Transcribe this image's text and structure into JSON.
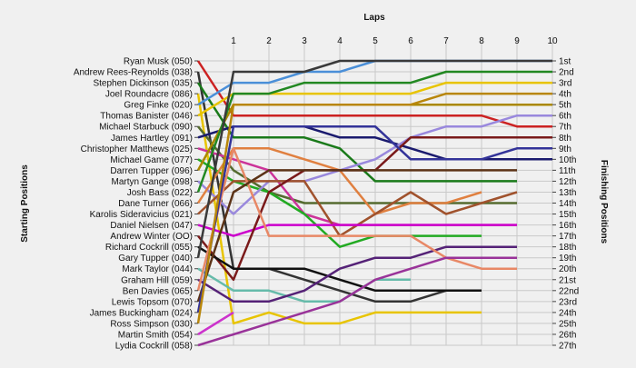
{
  "chart_data": {
    "type": "line",
    "title": "Laps",
    "ylabel_left": "Starting Positions",
    "ylabel_right": "Finishing Positions",
    "x": [
      0,
      1,
      2,
      3,
      4,
      5,
      6,
      7,
      8,
      9,
      10
    ],
    "x_tick_labels": [
      "1",
      "2",
      "3",
      "4",
      "5",
      "6",
      "7",
      "8",
      "9",
      "10"
    ],
    "xlim": [
      0,
      10
    ],
    "ylim": [
      1,
      27
    ],
    "y_inverted": true,
    "grid": true,
    "finish_labels": [
      "1st",
      "2nd",
      "3rd",
      "4th",
      "5th",
      "6th",
      "7th",
      "8th",
      "9th",
      "10th",
      "11th",
      "12th",
      "13th",
      "14th",
      "15th",
      "16th",
      "17th",
      "18th",
      "19th",
      "20th",
      "21st",
      "22nd",
      "23rd",
      "24th",
      "25th",
      "26th",
      "27th"
    ],
    "series": [
      {
        "name": "Ryan Musk (050)",
        "color": "#cc2222",
        "values": [
          1,
          6,
          6,
          6,
          6,
          6,
          6,
          6,
          6,
          7,
          7
        ]
      },
      {
        "name": "Andrew Rees-Reynolds (038)",
        "color": "#333333",
        "values": [
          2,
          20,
          20,
          21,
          22,
          23,
          23,
          22,
          22,
          null,
          null
        ]
      },
      {
        "name": "Stephen Dickinson (035)",
        "color": "#1a7a1a",
        "values": [
          3,
          8,
          8,
          8,
          9,
          12,
          12,
          12,
          12,
          12,
          null
        ]
      },
      {
        "name": "Joel Roundacre (086)",
        "color": "#e8c400",
        "values": [
          4,
          25,
          24,
          25,
          25,
          24,
          24,
          24,
          24,
          null,
          null
        ]
      },
      {
        "name": "Greg Finke (020)",
        "color": "#4a8fd8",
        "values": [
          5,
          3,
          3,
          2,
          2,
          1,
          1,
          1,
          1,
          1,
          1
        ]
      },
      {
        "name": "Thomas Banister (046)",
        "color": "#e8c400",
        "values": [
          6,
          4,
          4,
          4,
          4,
          4,
          4,
          3,
          3,
          3,
          3
        ]
      },
      {
        "name": "Michael Starbuck (090)",
        "color": "#556b2f",
        "values": [
          7,
          11,
          13,
          14,
          14,
          14,
          14,
          14,
          14,
          14,
          null
        ]
      },
      {
        "name": "James Hartley (091)",
        "color": "#1a1a6e",
        "values": [
          8,
          7,
          7,
          7,
          8,
          8,
          9,
          10,
          10,
          10,
          10
        ]
      },
      {
        "name": "Christopher Matthews (025)",
        "color": "#cc3399",
        "values": [
          9,
          10,
          11,
          15,
          16,
          16,
          16,
          16,
          16,
          16,
          null
        ]
      },
      {
        "name": "Michael Game (077)",
        "color": "#22aa22",
        "values": [
          10,
          12,
          13,
          15,
          18,
          17,
          17,
          17,
          17,
          null,
          null
        ]
      },
      {
        "name": "Darren Tupper (096)",
        "color": "#aa8800",
        "values": [
          11,
          5,
          5,
          5,
          5,
          5,
          5,
          5,
          5,
          5,
          5
        ]
      },
      {
        "name": "Martyn Gange (098)",
        "color": "#9988dd",
        "values": [
          12,
          15,
          12,
          12,
          11,
          10,
          8,
          7,
          7,
          6,
          6
        ]
      },
      {
        "name": "Josh Bass (022)",
        "color": "#228822",
        "values": [
          13,
          4,
          4,
          3,
          3,
          3,
          3,
          2,
          2,
          2,
          2
        ]
      },
      {
        "name": "Dane Turner (066)",
        "color": "#e08040",
        "values": [
          14,
          9,
          9,
          10,
          11,
          15,
          14,
          14,
          13,
          null,
          null
        ]
      },
      {
        "name": "Karolis Sideravicius (021)",
        "color": "#a0522d",
        "values": [
          15,
          12,
          12,
          12,
          17,
          15,
          13,
          15,
          14,
          13,
          null
        ]
      },
      {
        "name": "Daniel Nielsen (047)",
        "color": "#cc00cc",
        "values": [
          16,
          17,
          16,
          16,
          16,
          16,
          16,
          16,
          16,
          16,
          null
        ]
      },
      {
        "name": "Andrew Winter (OO)",
        "color": "#7a1a1a",
        "values": [
          17,
          21,
          13,
          11,
          11,
          11,
          8,
          8,
          8,
          8,
          8
        ]
      },
      {
        "name": "Richard Cockrill (055)",
        "color": "#111111",
        "values": [
          18,
          20,
          20,
          20,
          21,
          22,
          22,
          22,
          22,
          null,
          null
        ]
      },
      {
        "name": "Gary Tupper (040)",
        "color": "#3a3a3a",
        "values": [
          19,
          2,
          2,
          2,
          1,
          1,
          1,
          1,
          1,
          1,
          1
        ]
      },
      {
        "name": "Mark Taylor (044)",
        "color": "#66bbaa",
        "values": [
          20,
          22,
          22,
          23,
          23,
          21,
          21,
          null,
          null,
          null,
          null
        ]
      },
      {
        "name": "Graham Hill (059)",
        "color": "#552277",
        "values": [
          21,
          23,
          23,
          22,
          20,
          19,
          19,
          18,
          18,
          18,
          null
        ]
      },
      {
        "name": "Ben Davies (065)",
        "color": "#e88866",
        "values": [
          22,
          9,
          17,
          17,
          17,
          17,
          17,
          19,
          20,
          20,
          null
        ]
      },
      {
        "name": "Lewis Topsom (070)",
        "color": "#5c3317",
        "values": [
          23,
          13,
          11,
          11,
          11,
          11,
          11,
          11,
          11,
          11,
          null
        ]
      },
      {
        "name": "James Buckingham (024)",
        "color": "#333399",
        "values": [
          24,
          7,
          7,
          7,
          7,
          7,
          10,
          10,
          10,
          9,
          9
        ]
      },
      {
        "name": "Ross Simpson (030)",
        "color": "#b8860b",
        "values": [
          25,
          5,
          5,
          5,
          5,
          5,
          5,
          4,
          4,
          4,
          4
        ]
      },
      {
        "name": "Martin Smith (054)",
        "color": "#cc33cc",
        "values": [
          26,
          24,
          null,
          null,
          null,
          null,
          null,
          null,
          null,
          null,
          null
        ]
      },
      {
        "name": "Lydia Cockrill (058)",
        "color": "#993399",
        "values": [
          27,
          26,
          25,
          24,
          23,
          21,
          20,
          19,
          19,
          19,
          null
        ]
      }
    ]
  }
}
